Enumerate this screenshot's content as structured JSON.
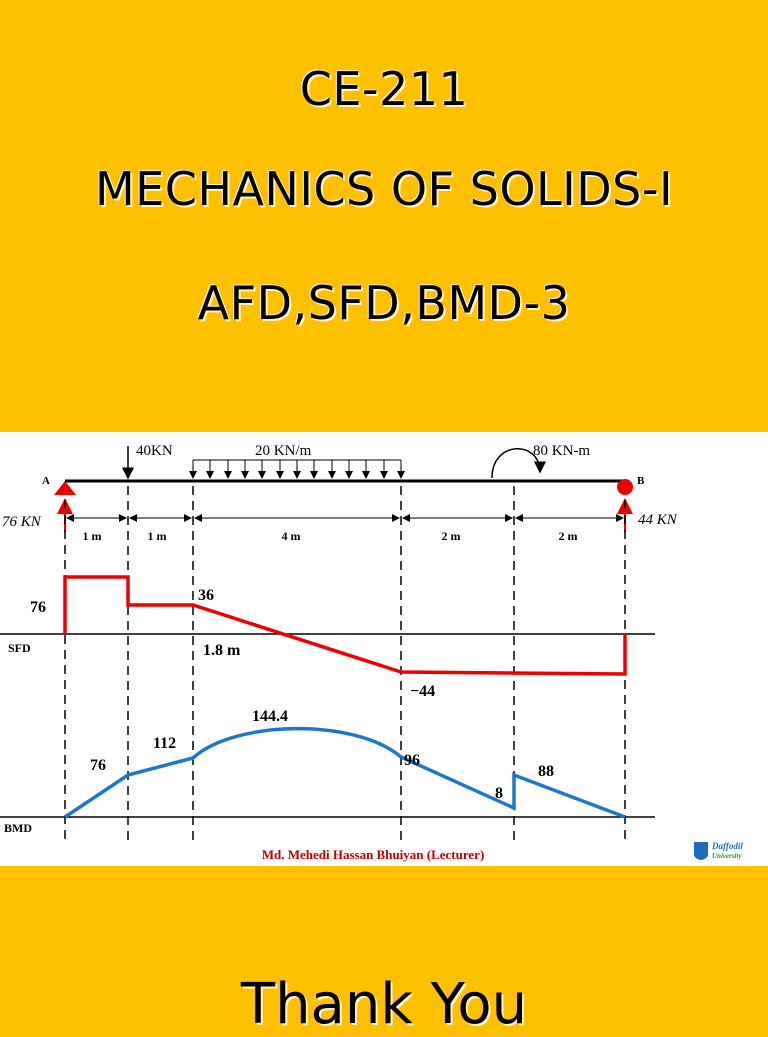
{
  "slide": {
    "title_lines": [
      "CE-211",
      "MECHANICS OF SOLIDS-I",
      "AFD,SFD,BMD-3"
    ],
    "closing": "Thank You"
  },
  "diagram": {
    "loads": {
      "point_load": "40KN",
      "udl": "20 KN/m",
      "moment": "80 KN-m"
    },
    "supports": {
      "left": "A",
      "right": "B"
    },
    "reactions": {
      "left": "76 KN",
      "right": "44 KN"
    },
    "spans": [
      "1 m",
      "1 m",
      "4 m",
      "2 m",
      "2 m"
    ],
    "sfd": {
      "label": "SFD",
      "values": [
        "76",
        "36",
        "1.8 m",
        "−44"
      ]
    },
    "bmd": {
      "label": "BMD",
      "values": [
        "76",
        "112",
        "144.4",
        "96",
        "8",
        "88"
      ]
    },
    "credit": "Md. Mehedi Hassan Bhuiyan (Lecturer)",
    "logo": [
      "Daffodil",
      "University"
    ]
  }
}
